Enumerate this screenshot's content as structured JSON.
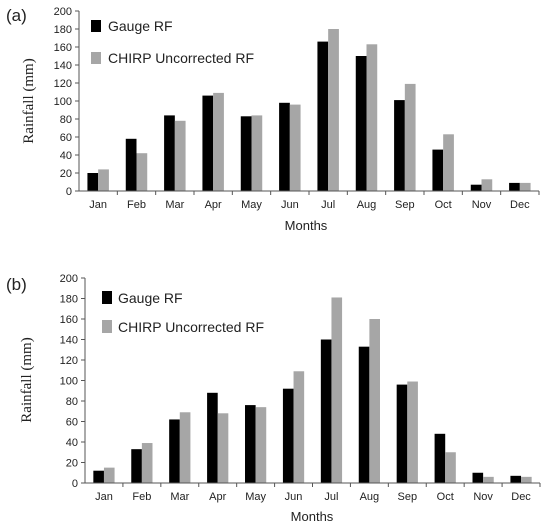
{
  "chart_data": [
    {
      "type": "bar",
      "panel_label": "(a)",
      "categories": [
        "Jan",
        "Feb",
        "Mar",
        "Apr",
        "May",
        "Jun",
        "Jul",
        "Aug",
        "Sep",
        "Oct",
        "Nov",
        "Dec"
      ],
      "series": [
        {
          "name": "Gauge RF",
          "color": "#000000",
          "values": [
            20,
            58,
            84,
            106,
            83,
            98,
            166,
            150,
            101,
            46,
            7,
            9
          ]
        },
        {
          "name": "CHIRP Uncorrected RF",
          "color": "#a6a6a6",
          "values": [
            24,
            42,
            78,
            109,
            84,
            96,
            180,
            163,
            119,
            63,
            13,
            9
          ]
        }
      ],
      "xlabel": "Months",
      "ylabel": "Rainfall (mm)",
      "ylim": [
        0,
        200
      ],
      "yticks": [
        0,
        20,
        40,
        60,
        80,
        100,
        120,
        140,
        160,
        180,
        200
      ],
      "grid": false,
      "legend_position": "top-left"
    },
    {
      "type": "bar",
      "panel_label": "(b)",
      "categories": [
        "Jan",
        "Feb",
        "Mar",
        "Apr",
        "May",
        "Jun",
        "Jul",
        "Aug",
        "Sep",
        "Oct",
        "Nov",
        "Dec"
      ],
      "series": [
        {
          "name": "Gauge RF",
          "color": "#000000",
          "values": [
            12,
            33,
            62,
            88,
            76,
            92,
            140,
            133,
            96,
            48,
            10,
            7
          ]
        },
        {
          "name": "CHIRP Uncorrected RF",
          "color": "#a6a6a6",
          "values": [
            15,
            39,
            69,
            68,
            74,
            109,
            181,
            160,
            99,
            30,
            6,
            6
          ]
        }
      ],
      "xlabel": "Months",
      "ylabel": "Rainfall (mm)",
      "ylim": [
        0,
        200
      ],
      "yticks": [
        0,
        20,
        40,
        60,
        80,
        100,
        120,
        140,
        160,
        180,
        200
      ],
      "grid": false,
      "legend_position": "top-left"
    }
  ]
}
